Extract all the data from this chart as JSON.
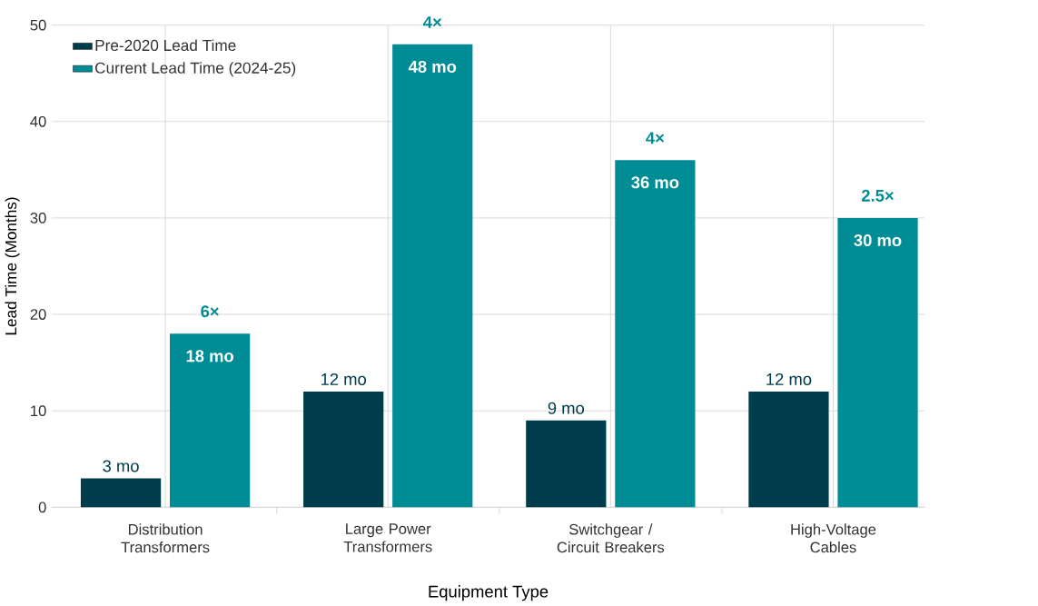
{
  "chart_data": {
    "type": "bar",
    "xlabel": "Equipment Type",
    "ylabel": "Lead Time (Months)",
    "categories": [
      "Distribution Transformers",
      "Large Power Transformers",
      "Switchgear / Circuit Breakers",
      "High-Voltage Cables"
    ],
    "series": [
      {
        "name": "Pre-2020 Lead Time",
        "color": "#003d4c",
        "values": [
          3,
          12,
          9,
          12
        ],
        "value_labels": [
          "3 mo",
          "12 mo",
          "9 mo",
          "12 mo"
        ]
      },
      {
        "name": "Current Lead Time (2024-25)",
        "color": "#008c95",
        "values": [
          18,
          48,
          36,
          30
        ],
        "value_labels": [
          "18 mo",
          "48 mo",
          "36 mo",
          "30 mo"
        ]
      }
    ],
    "annotations": [
      {
        "text": "6×",
        "x": "Distribution Transformers",
        "y": 18
      },
      {
        "text": "4×",
        "x": "Large Power Transformers",
        "y": 48
      },
      {
        "text": "4×",
        "x": "Switchgear / Circuit Breakers",
        "y": 36
      },
      {
        "text": "2.5×",
        "x": "High-Voltage Cables",
        "y": 30
      }
    ],
    "ylim": [
      0,
      50
    ],
    "yticks": [
      0,
      10,
      20,
      30,
      40,
      50
    ],
    "grid": true,
    "legend": "top left"
  }
}
